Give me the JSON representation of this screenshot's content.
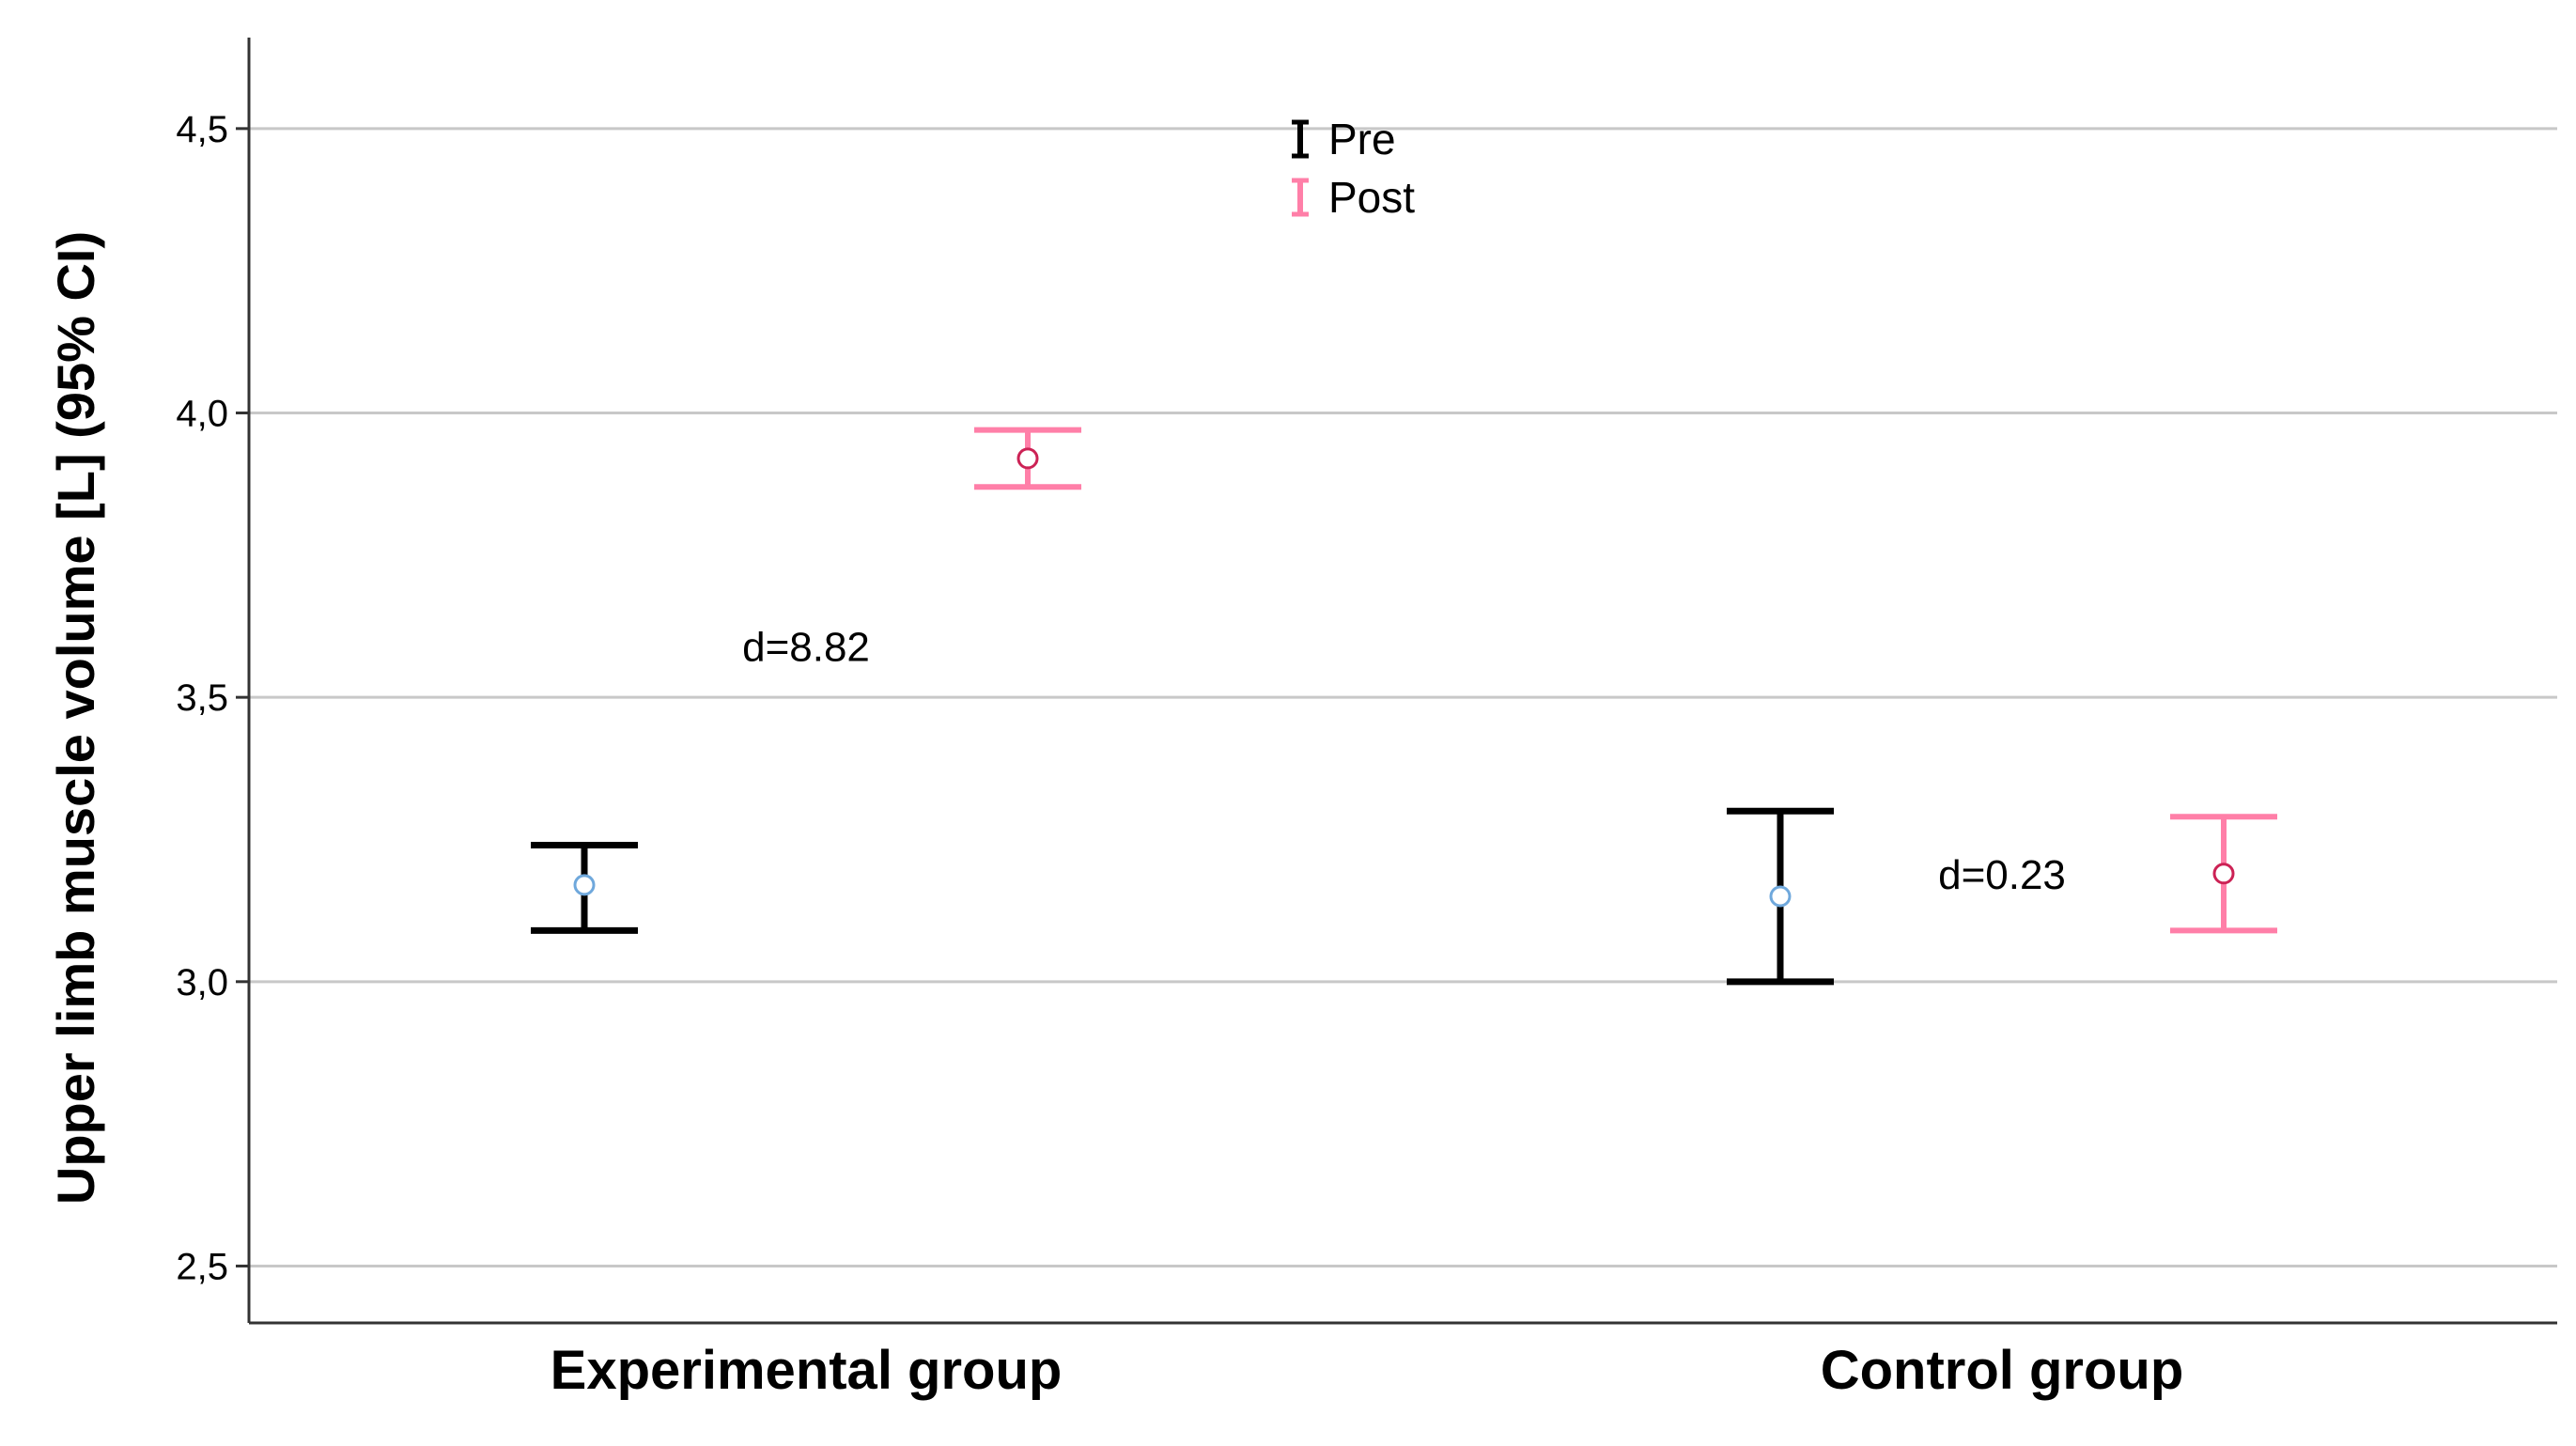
{
  "chart_data": {
    "type": "errorbar",
    "ylabel": "Upper limb muscle volume [L] (95% CI)",
    "xlabel": "",
    "ylim": [
      2.4,
      4.66
    ],
    "yticks": [
      "2,5",
      "3,0",
      "3,5",
      "4,0",
      "4,5"
    ],
    "ytick_values": [
      2.5,
      3.0,
      3.5,
      4.0,
      4.5
    ],
    "grid": true,
    "legend_position": "top-center",
    "categories": [
      "Experimental group",
      "Control group"
    ],
    "series": [
      {
        "name": "Pre",
        "color": "#000000",
        "marker_color": "#6fa8dc",
        "points": [
          {
            "category": "Experimental group",
            "mean": 3.17,
            "lower": 3.09,
            "upper": 3.24
          },
          {
            "category": "Control group",
            "mean": 3.15,
            "lower": 3.0,
            "upper": 3.3
          }
        ]
      },
      {
        "name": "Post",
        "color": "#ff7fa8",
        "marker_color": "#cc2255",
        "points": [
          {
            "category": "Experimental group",
            "mean": 3.92,
            "lower": 3.87,
            "upper": 3.97
          },
          {
            "category": "Control group",
            "mean": 3.19,
            "lower": 3.09,
            "upper": 3.29
          }
        ]
      }
    ],
    "annotations": [
      {
        "text": "d=8.82",
        "category": "Experimental group",
        "y": 3.59
      },
      {
        "text": "d=0.23",
        "category": "Control group",
        "y": 3.19
      }
    ]
  }
}
